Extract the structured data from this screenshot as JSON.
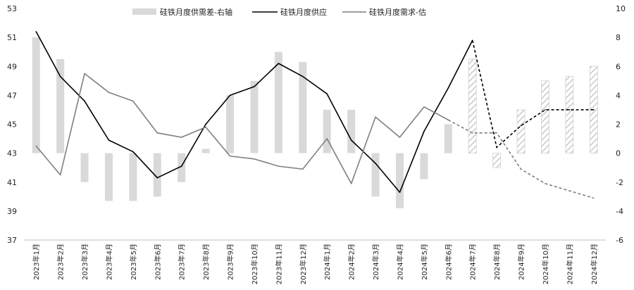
{
  "chart_data": {
    "type": "bar+line",
    "categories": [
      "2023年1月",
      "2023年2月",
      "2023年3月",
      "2023年4月",
      "2023年5月",
      "2023年6月",
      "2023年7月",
      "2023年8月",
      "2023年9月",
      "2023年10月",
      "2023年11月",
      "2023年12月",
      "2024年1月",
      "2024年2月",
      "2024年3月",
      "2024年4月",
      "2024年5月",
      "2024年6月",
      "2024年7月",
      "2024年8月",
      "2024年9月",
      "2024年10月",
      "2024年11月",
      "2024年12月"
    ],
    "y_left": {
      "min": 37,
      "max": 53,
      "ticks": [
        37,
        39,
        41,
        43,
        45,
        47,
        49,
        51,
        53
      ]
    },
    "y_right": {
      "min": -6,
      "max": 10,
      "ticks": [
        -6,
        -4,
        -2,
        0,
        2,
        4,
        6,
        8,
        10
      ]
    },
    "legend": {
      "placement": "top"
    },
    "series": [
      {
        "name": "硅铁月度供需差-右轴",
        "type": "bar",
        "axis": "right",
        "color": "#d9d9d9",
        "values": [
          8.0,
          6.5,
          -2.0,
          -3.3,
          -3.3,
          -3.0,
          -2.0,
          0.3,
          4.0,
          5.0,
          7.0,
          6.3,
          3.0,
          3.0,
          -3.0,
          -3.8,
          -1.8,
          2.0,
          6.5,
          -1.0,
          3.0,
          5.0,
          5.3,
          6.0
        ],
        "forecast_from_index": 18
      },
      {
        "name": "硅铁月度供应",
        "type": "line",
        "axis": "left",
        "color": "#000000",
        "values": [
          51.4,
          48.3,
          46.6,
          43.9,
          43.1,
          41.3,
          42.1,
          45.0,
          47.0,
          47.6,
          49.2,
          48.3,
          47.1,
          43.9,
          42.3,
          40.3,
          44.5,
          47.5,
          50.8,
          43.4,
          44.9,
          46.0,
          46.0,
          46.0
        ],
        "forecast_from_index": 18
      },
      {
        "name": "硅铁月度需求-估",
        "type": "line",
        "axis": "left",
        "color": "#7f7f7f",
        "values": [
          43.5,
          41.5,
          48.5,
          47.2,
          46.6,
          44.4,
          44.1,
          44.8,
          42.8,
          42.6,
          42.1,
          41.9,
          44.0,
          40.9,
          45.5,
          44.1,
          46.2,
          45.3,
          44.4,
          44.4,
          41.9,
          40.9,
          40.4,
          39.9
        ],
        "forecast_from_index": 17
      }
    ]
  }
}
